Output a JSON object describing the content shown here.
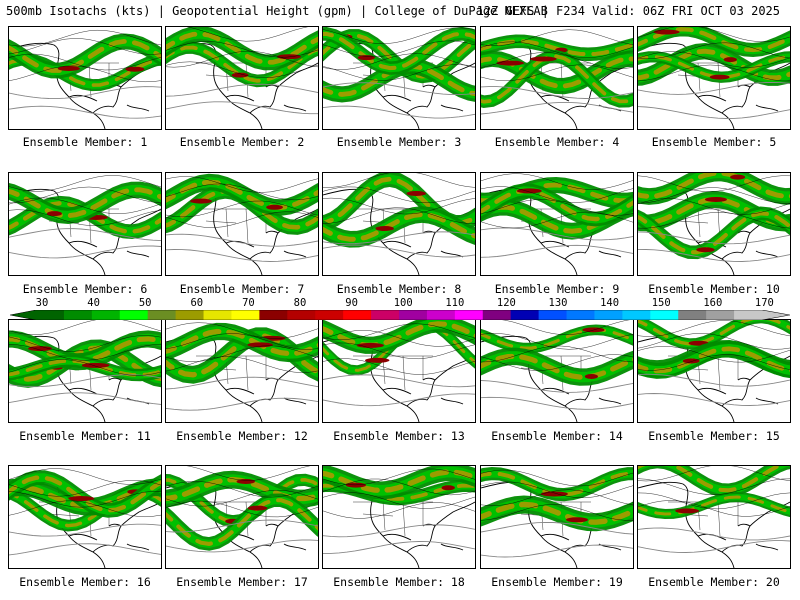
{
  "header": {
    "left": "500mb Isotachs (kts) | Geopotential Height (gpm) | College of DuPage NEXLAB",
    "right": "12Z GEFS | F234 Valid: 06Z FRI OCT 03 2025"
  },
  "legend": {
    "ticks": [
      "30",
      "40",
      "50",
      "60",
      "70",
      "80",
      "90",
      "100",
      "110",
      "120",
      "130",
      "140",
      "150",
      "160",
      "170"
    ],
    "colors": [
      "#006400",
      "#008c00",
      "#00b400",
      "#00ff00",
      "#6b8e23",
      "#9c9c00",
      "#e6e600",
      "#ffff00",
      "#8b0000",
      "#b40000",
      "#cc0000",
      "#ff0000",
      "#cc0066",
      "#a000a0",
      "#cc00cc",
      "#ff00ff",
      "#800080",
      "#0000b4",
      "#0050ff",
      "#0078ff",
      "#00a0ff",
      "#00c8ff",
      "#00ffff",
      "#808080",
      "#a0a0a0",
      "#c8c8c8"
    ]
  },
  "panels": [
    {
      "label": "Ensemble Member: 1"
    },
    {
      "label": "Ensemble Member: 2"
    },
    {
      "label": "Ensemble Member: 3"
    },
    {
      "label": "Ensemble Member: 4"
    },
    {
      "label": "Ensemble Member: 5"
    },
    {
      "label": "Ensemble Member: 6"
    },
    {
      "label": "Ensemble Member: 7"
    },
    {
      "label": "Ensemble Member: 8"
    },
    {
      "label": "Ensemble Member: 9"
    },
    {
      "label": "Ensemble Member: 10"
    },
    {
      "label": "Ensemble Member: 11"
    },
    {
      "label": "Ensemble Member: 12"
    },
    {
      "label": "Ensemble Member: 13"
    },
    {
      "label": "Ensemble Member: 14"
    },
    {
      "label": "Ensemble Member: 15"
    },
    {
      "label": "Ensemble Member: 16"
    },
    {
      "label": "Ensemble Member: 17"
    },
    {
      "label": "Ensemble Member: 18"
    },
    {
      "label": "Ensemble Member: 19"
    },
    {
      "label": "Ensemble Member: 20"
    }
  ]
}
